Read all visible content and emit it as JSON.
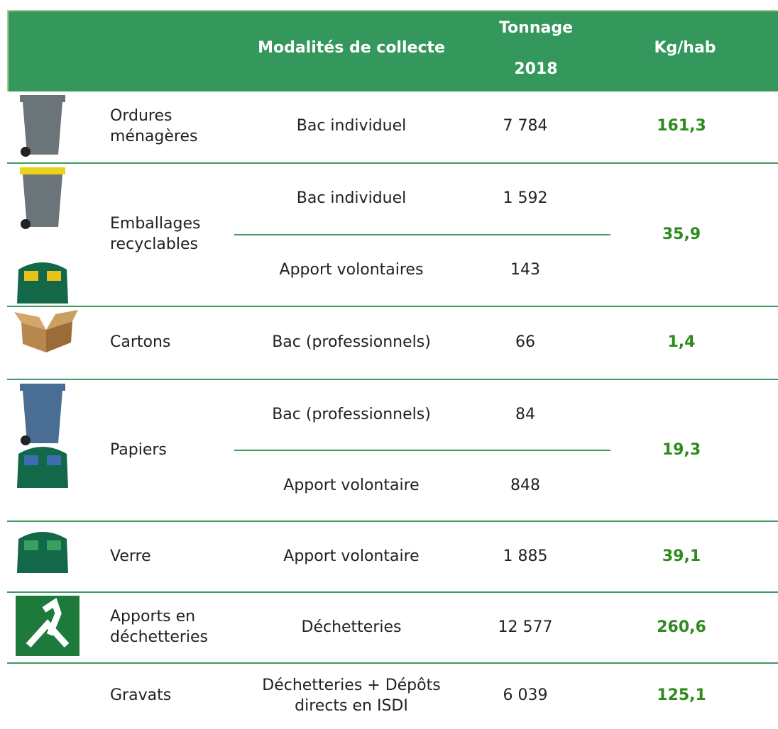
{
  "header": {
    "modalites": "Modalités de collecte",
    "tonnage": "Tonnage",
    "year": "2018",
    "kg": "Kg/hab"
  },
  "table": {
    "rows": [
      {
        "name": "Ordures ménagères",
        "items": [
          {
            "modalite": "Bac individuel",
            "tonnage": "7 784"
          }
        ],
        "kg": "161,3"
      },
      {
        "name": "Emballages recyclables",
        "items": [
          {
            "modalite": "Bac individuel",
            "tonnage": "1 592"
          },
          {
            "modalite": "Apport volontaires",
            "tonnage": "143"
          }
        ],
        "kg": "35,9"
      },
      {
        "name": "Cartons",
        "items": [
          {
            "modalite": "Bac (professionnels)",
            "tonnage": "66"
          }
        ],
        "kg": "1,4"
      },
      {
        "name": "Papiers",
        "items": [
          {
            "modalite": "Bac (professionnels)",
            "tonnage": "84"
          },
          {
            "modalite": "Apport volontaire",
            "tonnage": "848"
          }
        ],
        "kg": "19,3"
      },
      {
        "name": "Verre",
        "items": [
          {
            "modalite": "Apport volontaire",
            "tonnage": "1 885"
          }
        ],
        "kg": "39,1"
      },
      {
        "name": "Apports en déchetteries",
        "items": [
          {
            "modalite": "Déchetteries",
            "tonnage": "12 577"
          }
        ],
        "kg": "260,6"
      },
      {
        "name": "Gravats",
        "items": [
          {
            "modalite": "Déchetteries + Dépôts directs en ISDI",
            "tonnage": "6 039"
          }
        ],
        "kg": "125,1"
      }
    ]
  }
}
